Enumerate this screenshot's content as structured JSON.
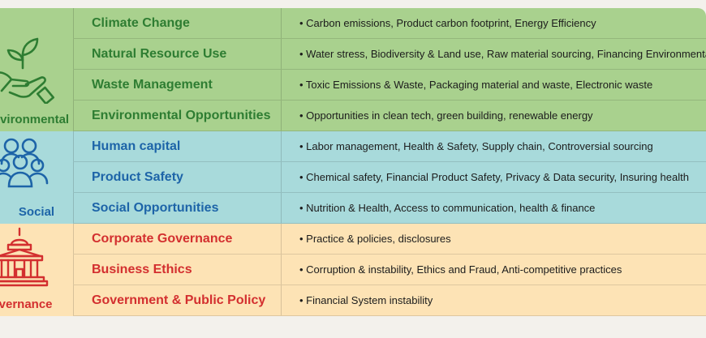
{
  "groups": [
    {
      "pillar": "Environmental",
      "icon": "plant-in-hand-icon",
      "color": "#2e7d32",
      "rows": [
        {
          "category": "Climate Change",
          "description": "• Carbon emissions, Product carbon footprint, Energy Efficiency"
        },
        {
          "category": "Natural Resource Use",
          "description": "• Water stress, Biodiversity & Land use, Raw material sourcing, Financing Environmental I"
        },
        {
          "category": "Waste Management",
          "description": "• Toxic Emissions & Waste, Packaging material and waste, Electronic waste"
        },
        {
          "category": "Environmental Opportunities",
          "description": "• Opportunities in clean tech, green building, renewable energy"
        }
      ]
    },
    {
      "pillar": "Social",
      "icon": "people-group-icon",
      "color": "#1d64a8",
      "rows": [
        {
          "category": "Human capital",
          "description": "• Labor management, Health & Safety, Supply chain, Controversial sourcing"
        },
        {
          "category": "Product Safety",
          "description": "• Chemical safety, Financial Product Safety, Privacy & Data security, Insuring health"
        },
        {
          "category": "Social Opportunities",
          "description": "• Nutrition & Health, Access to communication, health & finance"
        }
      ]
    },
    {
      "pillar": "overnance",
      "icon": "government-building-icon",
      "color": "#d32f2f",
      "rows": [
        {
          "category": "Corporate Governance",
          "description": "• Practice & policies, disclosures"
        },
        {
          "category": "Business Ethics",
          "description": "• Corruption & instability, Ethics and Fraud, Anti-competitive practices"
        },
        {
          "category": "Government & Public Policy",
          "description": "• Financial System instability"
        }
      ]
    }
  ]
}
